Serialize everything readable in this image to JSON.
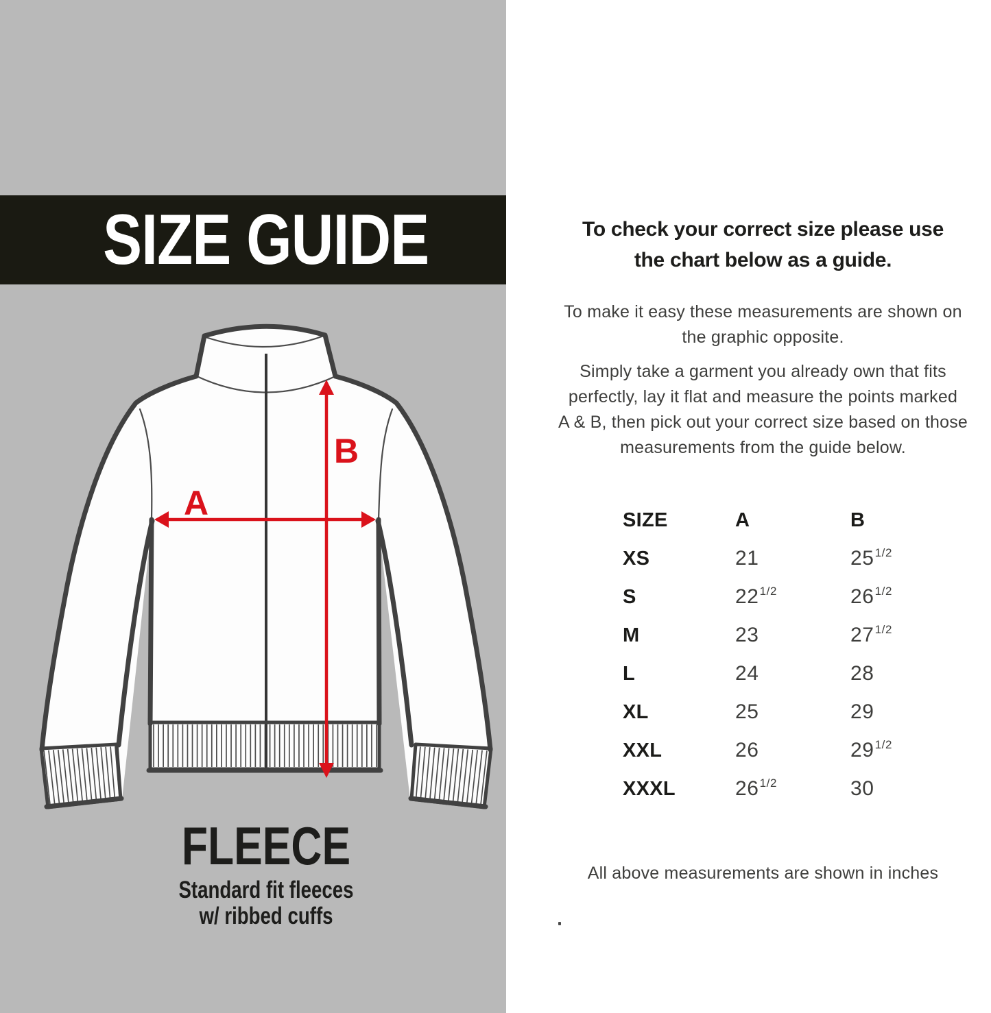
{
  "left_panel": {
    "banner_title": "SIZE GUIDE",
    "diagram": {
      "label_a": "A",
      "label_b": "B"
    },
    "product": {
      "name": "FLEECE",
      "description": "Standard fit fleeces\nw/ ribbed cuffs"
    }
  },
  "right_panel": {
    "heading": "To check your correct size please use\nthe chart below as a guide.",
    "intro": "To make it easy these measurements are shown on\nthe graphic opposite.",
    "instructions": "Simply take a garment you already own that fits\nperfectly, lay it flat and measure the points marked\nA & B, then pick out your correct size based on those\nmeasurements from the guide below.",
    "table": {
      "headers": [
        "SIZE",
        "A",
        "B"
      ],
      "rows": [
        {
          "size": "XS",
          "a": "21",
          "b": "25 1/2"
        },
        {
          "size": "S",
          "a": "22 1/2",
          "b": "26 1/2"
        },
        {
          "size": "M",
          "a": "23",
          "b": "27 1/2"
        },
        {
          "size": "L",
          "a": "24",
          "b": "28"
        },
        {
          "size": "XL",
          "a": "25",
          "b": "29"
        },
        {
          "size": "XXL",
          "a": "26",
          "b": "29 1/2"
        },
        {
          "size": "XXXL",
          "a": "26 1/2",
          "b": "30"
        }
      ],
      "units_note": "All above measurements are shown in inches"
    }
  },
  "colors": {
    "panel_gray": "#b9b9b9",
    "banner_black": "#1a1a12",
    "accent_red": "#da121b",
    "outline_gray": "#414141"
  }
}
